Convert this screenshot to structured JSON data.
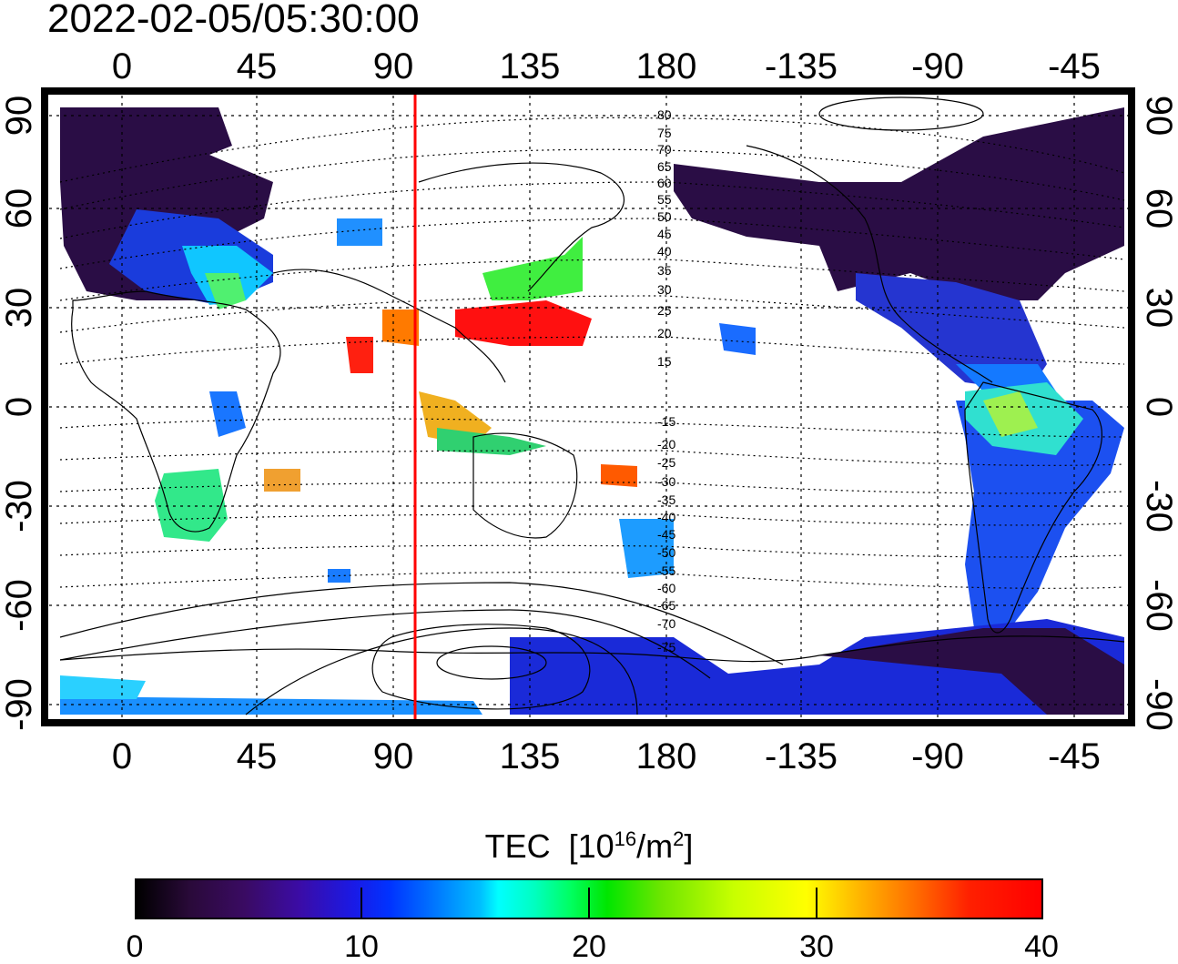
{
  "timestamp": "2022-02-05/05:30:00",
  "top_lon_labels": [
    "0",
    "45",
    "90",
    "135",
    "180",
    "-135",
    "-90",
    "-45"
  ],
  "bottom_lon_labels": [
    "0",
    "45",
    "90",
    "135",
    "180",
    "-135",
    "-90",
    "-45"
  ],
  "left_lat_labels": [
    "90",
    "60",
    "30",
    "0",
    "-30",
    "-60",
    "-90"
  ],
  "right_lat_labels": [
    "90",
    "60",
    "30",
    "0",
    "-30",
    "-60",
    "-90"
  ],
  "mag_lat_labels": [
    "80",
    "75",
    "70",
    "65",
    "60",
    "55",
    "50",
    "45",
    "40",
    "35",
    "30",
    "25",
    "20",
    "15",
    "-15",
    "-20",
    "-25",
    "-30",
    "-35",
    "-40",
    "-45",
    "-50",
    "-55",
    "-60",
    "-65",
    "-70",
    "-75"
  ],
  "colorbar": {
    "title": "TEC",
    "unit_prefix": "[10",
    "unit_exp": "16",
    "unit_mid": "/m",
    "unit_exp2": "2",
    "unit_suffix": "]",
    "min": 0,
    "max": 40,
    "tick_labels": [
      "0",
      "10",
      "20",
      "30",
      "40"
    ]
  },
  "terminator_lon": 97,
  "terminator_color": "#ff0000",
  "map_extent": {
    "lon": [
      -22,
      338
    ],
    "lat": [
      -90,
      90
    ]
  }
}
